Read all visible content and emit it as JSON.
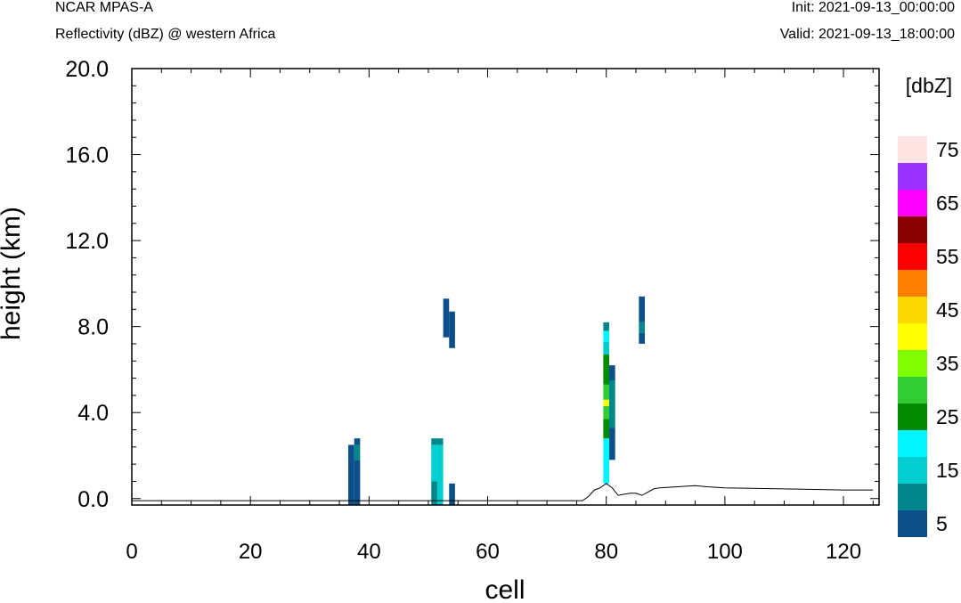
{
  "header": {
    "model": "NCAR MPAS-A",
    "subtitle": "Reflectivity (dBZ) @ western Africa",
    "init": "Init: 2021-09-13_00:00:00",
    "valid": "Valid: 2021-09-13_18:00:00"
  },
  "chart_data": {
    "type": "heatmap",
    "xlabel": "cell",
    "ylabel": "height (km)",
    "xlim": [
      0,
      126
    ],
    "ylim": [
      -0.3,
      20.0
    ],
    "xticks": [
      "0",
      "20",
      "40",
      "60",
      "80",
      "100",
      "120"
    ],
    "yticks": [
      "0.0",
      "4.0",
      "8.0",
      "12.0",
      "16.0",
      "20.0"
    ],
    "colorbar": {
      "title": "[dbZ]",
      "levels": [
        5,
        10,
        15,
        20,
        25,
        30,
        35,
        40,
        45,
        50,
        55,
        60,
        65,
        70,
        75
      ],
      "labels": [
        "5",
        "15",
        "25",
        "35",
        "45",
        "55",
        "65",
        "75"
      ],
      "colors": [
        "#0d4f8b",
        "#00868b",
        "#00ced1",
        "#00f5ff",
        "#008b00",
        "#32cd32",
        "#7fff00",
        "#ffff00",
        "#ffd700",
        "#ff7f00",
        "#ff0000",
        "#8b0000",
        "#ff00ff",
        "#9b30ff",
        "#ffe4e1"
      ]
    },
    "terrain": {
      "x": [
        0,
        76,
        77,
        78,
        79,
        80,
        81,
        82,
        84,
        85,
        86,
        87,
        88,
        89,
        92,
        95,
        97,
        100,
        110,
        120,
        125
      ],
      "height": [
        -0.1,
        -0.1,
        0.1,
        0.4,
        0.5,
        0.7,
        0.5,
        0.15,
        0.25,
        0.25,
        0.15,
        0.3,
        0.45,
        0.5,
        0.55,
        0.6,
        0.55,
        0.5,
        0.45,
        0.4,
        0.4
      ]
    },
    "cells": [
      {
        "x": 37,
        "y0": -0.3,
        "y1": 2.5,
        "dbz": 5
      },
      {
        "x": 38,
        "y0": -0.3,
        "y1": 1.8,
        "dbz": 5
      },
      {
        "x": 38,
        "y0": 1.8,
        "y1": 2.5,
        "dbz": 10
      },
      {
        "x": 38,
        "y0": 2.5,
        "y1": 2.8,
        "dbz": 5
      },
      {
        "x": 51,
        "y0": -0.3,
        "y1": 0.8,
        "dbz": 10
      },
      {
        "x": 51,
        "y0": 0.8,
        "y1": 2.5,
        "dbz": 15
      },
      {
        "x": 51,
        "y0": 2.5,
        "y1": 2.8,
        "dbz": 10
      },
      {
        "x": 52,
        "y0": -0.3,
        "y1": 2.5,
        "dbz": 15
      },
      {
        "x": 52,
        "y0": 2.5,
        "y1": 2.8,
        "dbz": 10
      },
      {
        "x": 53,
        "y0": 7.5,
        "y1": 9.3,
        "dbz": 5
      },
      {
        "x": 54,
        "y0": -0.3,
        "y1": 0.7,
        "dbz": 5
      },
      {
        "x": 54,
        "y0": 7.0,
        "y1": 8.7,
        "dbz": 5
      },
      {
        "x": 80,
        "y0": 0.7,
        "y1": 2.8,
        "dbz": 20
      },
      {
        "x": 80,
        "y0": 2.8,
        "y1": 3.7,
        "dbz": 25
      },
      {
        "x": 80,
        "y0": 3.7,
        "y1": 4.3,
        "dbz": 30
      },
      {
        "x": 80,
        "y0": 4.3,
        "y1": 4.6,
        "dbz": 40
      },
      {
        "x": 80,
        "y0": 4.6,
        "y1": 5.3,
        "dbz": 30
      },
      {
        "x": 80,
        "y0": 5.3,
        "y1": 6.7,
        "dbz": 25
      },
      {
        "x": 80,
        "y0": 6.7,
        "y1": 7.3,
        "dbz": 15
      },
      {
        "x": 80,
        "y0": 7.3,
        "y1": 7.8,
        "dbz": 20
      },
      {
        "x": 80,
        "y0": 7.8,
        "y1": 8.2,
        "dbz": 10
      },
      {
        "x": 81,
        "y0": 1.8,
        "y1": 3.3,
        "dbz": 5
      },
      {
        "x": 81,
        "y0": 3.3,
        "y1": 5.5,
        "dbz": 10
      },
      {
        "x": 81,
        "y0": 5.5,
        "y1": 6.2,
        "dbz": 5
      },
      {
        "x": 86,
        "y0": 7.2,
        "y1": 7.7,
        "dbz": 5
      },
      {
        "x": 86,
        "y0": 7.7,
        "y1": 8.2,
        "dbz": 10
      },
      {
        "x": 86,
        "y0": 8.2,
        "y1": 9.4,
        "dbz": 5
      }
    ]
  }
}
